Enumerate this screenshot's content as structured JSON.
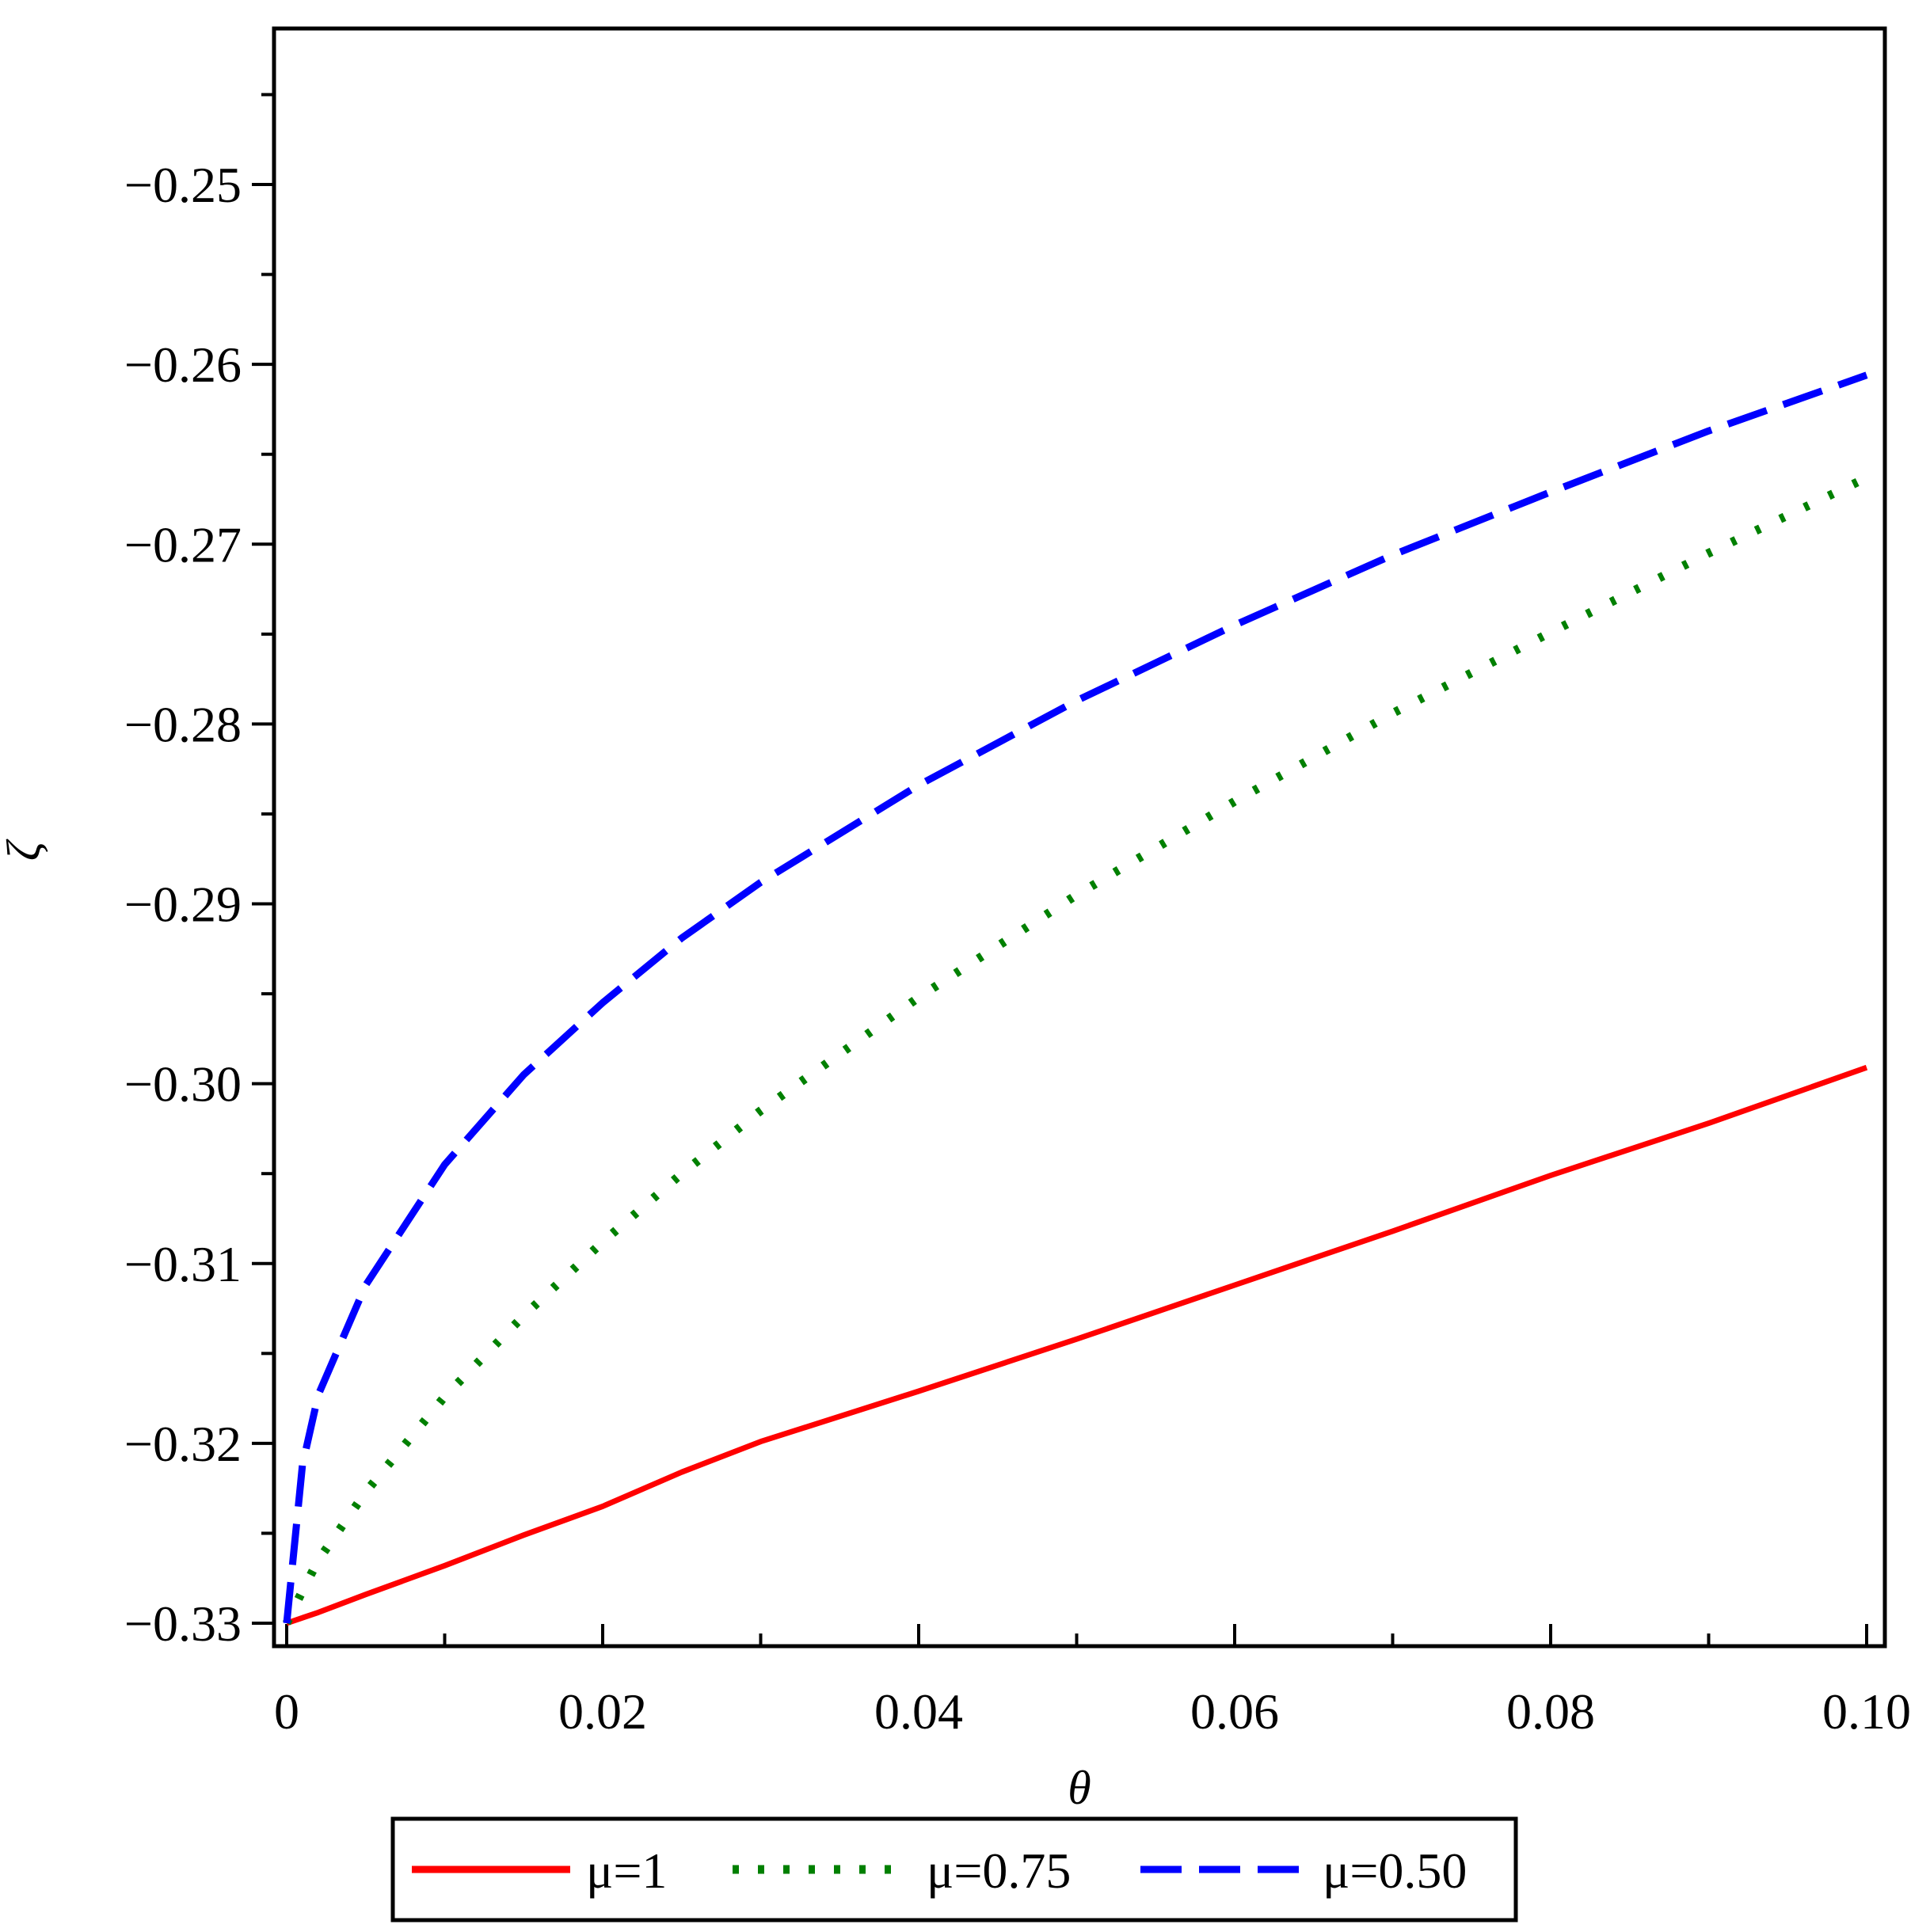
{
  "chart_data": {
    "type": "line",
    "title": "",
    "xlabel": "θ",
    "ylabel": "ζ",
    "xlim": [
      0,
      0.1
    ],
    "ylim": [
      -0.33,
      -0.2415
    ],
    "grid": false,
    "legend_position": "bottom",
    "x_ticks": [
      0,
      0.02,
      0.04,
      0.06,
      0.08,
      0.1
    ],
    "x_tick_labels": [
      "0",
      "0.02",
      "0.04",
      "0.06",
      "0.08",
      "0.10"
    ],
    "y_ticks": [
      -0.33,
      -0.32,
      -0.31,
      -0.3,
      -0.29,
      -0.28,
      -0.27,
      -0.26,
      -0.25
    ],
    "y_tick_labels": [
      "−0.33",
      "−0.32",
      "−0.31",
      "−0.30",
      "−0.29",
      "−0.28",
      "−0.27",
      "−0.26",
      "−0.25"
    ],
    "x": [
      0,
      0.001,
      0.002,
      0.005,
      0.01,
      0.015,
      0.02,
      0.025,
      0.03,
      0.04,
      0.05,
      0.06,
      0.07,
      0.08,
      0.09,
      0.1
    ],
    "series": [
      {
        "name": "μ=1",
        "color": "#ff0000",
        "style": "solid",
        "values": [
          -0.33,
          -0.3297,
          -0.3294,
          -0.3284,
          -0.3268,
          -0.3251,
          -0.3235,
          -0.3216,
          -0.3199,
          -0.3171,
          -0.3142,
          -0.3112,
          -0.3082,
          -0.3051,
          -0.3022,
          -0.2991
        ]
      },
      {
        "name": "μ=0.75",
        "color": "#008000",
        "style": "dotted",
        "values": [
          -0.33,
          -0.3282,
          -0.3265,
          -0.3227,
          -0.3174,
          -0.3129,
          -0.3088,
          -0.305,
          -0.3015,
          -0.2952,
          -0.2895,
          -0.2843,
          -0.2794,
          -0.2749,
          -0.2705,
          -0.2663
        ]
      },
      {
        "name": "μ=0.50",
        "color": "#0000ff",
        "style": "dashed",
        "values": [
          -0.33,
          -0.3212,
          -0.3173,
          -0.3112,
          -0.3045,
          -0.2995,
          -0.2955,
          -0.2919,
          -0.2888,
          -0.2834,
          -0.2787,
          -0.2745,
          -0.2706,
          -0.2671,
          -0.2637,
          -0.2606
        ]
      }
    ]
  }
}
